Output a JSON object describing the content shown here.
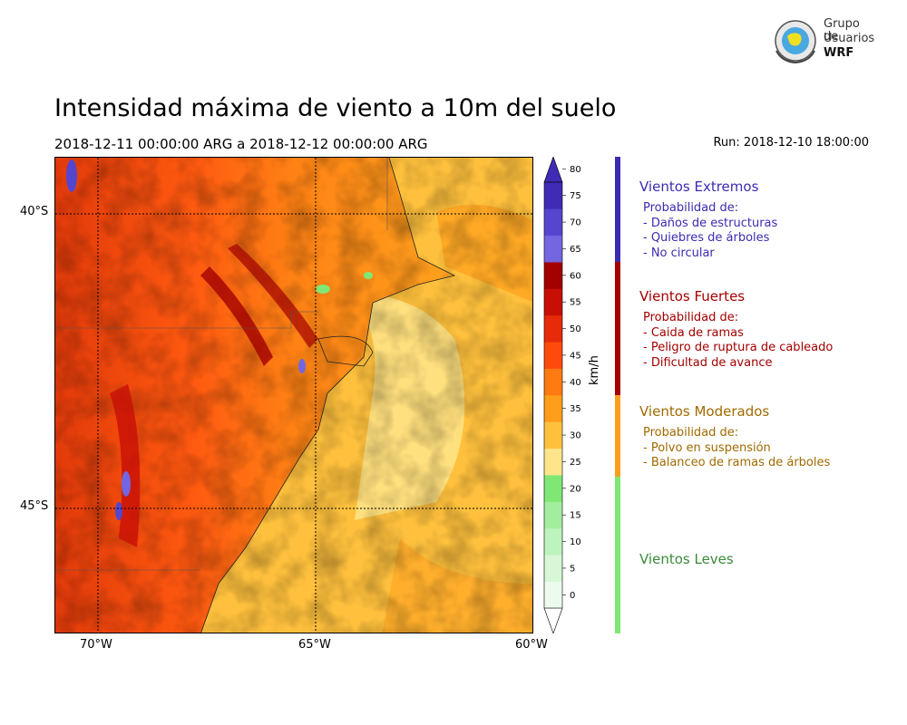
{
  "logo": {
    "line1": "Grupo de",
    "line2": "Usuarios",
    "line3": "WRF"
  },
  "title": "Intensidad máxima de viento a 10m del suelo",
  "period": "2018-12-11 00:00:00 ARG  a  2018-12-12 00:00:00 ARG",
  "run": "Run: 2018-12-10 18:00:00",
  "map": {
    "lat_ticks": [
      {
        "label": "40°S",
        "lat": -40
      },
      {
        "label": "45°S",
        "lat": -45
      }
    ],
    "lon_ticks": [
      {
        "label": "70°W",
        "lon": -70
      },
      {
        "label": "65°W",
        "lon": -65
      },
      {
        "label": "60°W",
        "lon": -60
      }
    ],
    "extent": {
      "lon_min": -71,
      "lon_max": -60,
      "lat_min": -47,
      "lat_max": -39
    }
  },
  "colorbar": {
    "unit": "km/h",
    "levels": [
      0,
      5,
      10,
      15,
      20,
      25,
      30,
      35,
      40,
      45,
      50,
      55,
      60,
      65,
      70,
      75,
      80
    ],
    "colors": [
      "#edfbed",
      "#d7f7d7",
      "#bdf3bd",
      "#a2ee9e",
      "#80e775",
      "#ffe58a",
      "#ffc13d",
      "#ff9e1b",
      "#ff7a10",
      "#ff4a0b",
      "#e62a0a",
      "#c80f06",
      "#a30000",
      "#7366e0",
      "#5546cf",
      "#3f2bb5"
    ]
  },
  "categories": [
    {
      "name": "Vientos Extremos",
      "color": "#3b2bb0",
      "lines": [
        "Probabilidad de:",
        "- Daños de estructuras",
        "- Quiebres de árboles",
        "- No circular"
      ]
    },
    {
      "name": "Vientos Fuertes",
      "color": "#a30000",
      "lines": [
        "Probabilidad de:",
        "- Caida de ramas",
        "- Peligro de ruptura de cableado",
        "- Dificultad de avance"
      ]
    },
    {
      "name": "Vientos Moderados",
      "color": "#ff9e1b",
      "text_color": "#a06a00",
      "lines": [
        "Probabilidad de:",
        "- Polvo en suspensión",
        "- Balanceo de ramas de árboles"
      ]
    },
    {
      "name": "Vientos Leves",
      "color": "#80e775",
      "text_color": "#3a8a3a",
      "lines": []
    }
  ]
}
